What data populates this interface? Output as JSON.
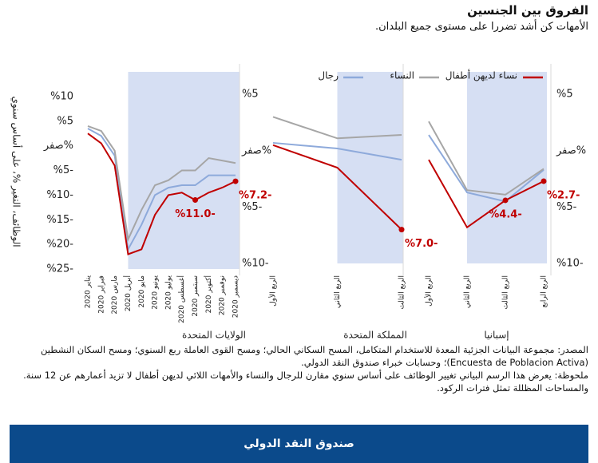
{
  "title": "الفروق بين الجنسين",
  "subtitle": "الأمهات كن أشد تضررا على مستوى جميع البلدان.",
  "y_axis_title": "الوظائف، التغير %، على أساس سنوي",
  "notes": [
    "المصدر: مجموعة البيانات الجزئية المعدة للاستخدام المتكامل، المسح السكاني الحالي؛ ومسح القوى العاملة ربع السنوي؛ ومسح السكان النشطين (Encuesta de Poblacion Activa)؛ وحسابات خبراء صندوق النقد الدولي.",
    "ملحوظة: يعرض هذا الرسم البياني تغيير الوظائف على أساس سنوي مقارن للرجال والنساء والأمهات اللائي لديهن أطفال لا تزيد أعمارهم عن 12 سنة. والمساحات المظللة تمثل فترات الركود."
  ],
  "footer": "صندوق النقد الدولي",
  "chart_data": [
    {
      "type": "line",
      "x_label": "الولايات المتحدة",
      "categories": [
        "يناير 2020",
        "فبراير 2020",
        "مارس 2020",
        "أبريل 2020",
        "مايو 2020",
        "يونيو 2020",
        "يوليو 2020",
        "أغسطس 2020",
        "سبتمبر 2020",
        "أكتوبر 2020",
        "نوفمبر 2020",
        "ديسمبر 2020"
      ],
      "shaded": {
        "from": "أبريل 2020",
        "to": "ديسمبر 2020"
      },
      "ylim": [
        -25,
        15
      ],
      "yticks": [
        {
          "value": -25,
          "label": "%25-"
        },
        {
          "value": -20,
          "label": "%20-"
        },
        {
          "value": -15,
          "label": "%15-"
        },
        {
          "value": -10,
          "label": "%10-"
        },
        {
          "value": -5,
          "label": "%5-"
        },
        {
          "value": 0,
          "label": "صفر%"
        },
        {
          "value": 5,
          "label": "%5"
        },
        {
          "value": 10,
          "label": "%10"
        }
      ],
      "series": [
        {
          "name": "نساء لديهن أطفال",
          "color": "#c00000",
          "values": [
            2.5,
            0.5,
            -4,
            -22,
            -21,
            -14,
            -10,
            -9.5,
            -11.0,
            -9.5,
            -8.5,
            -7.2
          ],
          "value_labels": [
            null,
            null,
            null,
            null,
            null,
            null,
            null,
            null,
            "%11.0-",
            null,
            null,
            "%7.2-"
          ]
        },
        {
          "name": "النساء",
          "color": "#a6a6a6",
          "values": [
            4,
            3,
            -1,
            -19,
            -13,
            -8,
            -7,
            -5,
            -5,
            -2.5,
            -3,
            -3.5
          ]
        },
        {
          "name": "رجال",
          "color": "#8eaadb",
          "values": [
            3.5,
            2,
            -2,
            -21,
            -16,
            -10,
            -8.5,
            -8,
            -8,
            -6,
            -6,
            -6
          ]
        }
      ]
    },
    {
      "type": "line",
      "x_label": "المملكة المتحدة",
      "categories": [
        "الربع الأول",
        "الربع الثاني",
        "الربع الثالث"
      ],
      "shaded": {
        "from": "الربع الثاني",
        "to": "الربع الثالث"
      },
      "ylim": [
        -10,
        7
      ],
      "yticks": [
        {
          "value": -10,
          "label": "%10-"
        },
        {
          "value": -5,
          "label": "%5-"
        },
        {
          "value": 0,
          "label": "صفر%"
        },
        {
          "value": 5,
          "label": "%5"
        }
      ],
      "series": [
        {
          "color": "#c00000",
          "values": [
            0.5,
            -1.5,
            -7.0
          ],
          "value_labels": [
            null,
            null,
            "%7.0-"
          ]
        },
        {
          "color": "#a6a6a6",
          "values": [
            3,
            1.1,
            1.4
          ]
        },
        {
          "color": "#8eaadb",
          "values": [
            0.7,
            0.2,
            -0.8
          ]
        }
      ]
    },
    {
      "type": "line",
      "x_label": "إسبانيا",
      "categories": [
        "الربع الأول",
        "الربع الثاني",
        "الربع الثالث",
        "الربع الرابع"
      ],
      "shaded": {
        "from": "الربع الثاني",
        "to": "الربع الرابع"
      },
      "ylim": [
        -10,
        7
      ],
      "yticks": [
        {
          "value": -10,
          "label": "%10-"
        },
        {
          "value": -5,
          "label": "%5-"
        },
        {
          "value": 0,
          "label": "صفر%"
        },
        {
          "value": 5,
          "label": "%5"
        }
      ],
      "series": [
        {
          "color": "#c00000",
          "values": [
            -0.8,
            -6.8,
            -4.4,
            -2.7
          ],
          "value_labels": [
            null,
            null,
            "%4.4-",
            "%2.7-"
          ]
        },
        {
          "color": "#a6a6a6",
          "values": [
            2.6,
            -3.5,
            -3.9,
            -1.6
          ]
        },
        {
          "color": "#8eaadb",
          "values": [
            1.4,
            -3.7,
            -4.5,
            -1.7
          ]
        }
      ]
    }
  ]
}
